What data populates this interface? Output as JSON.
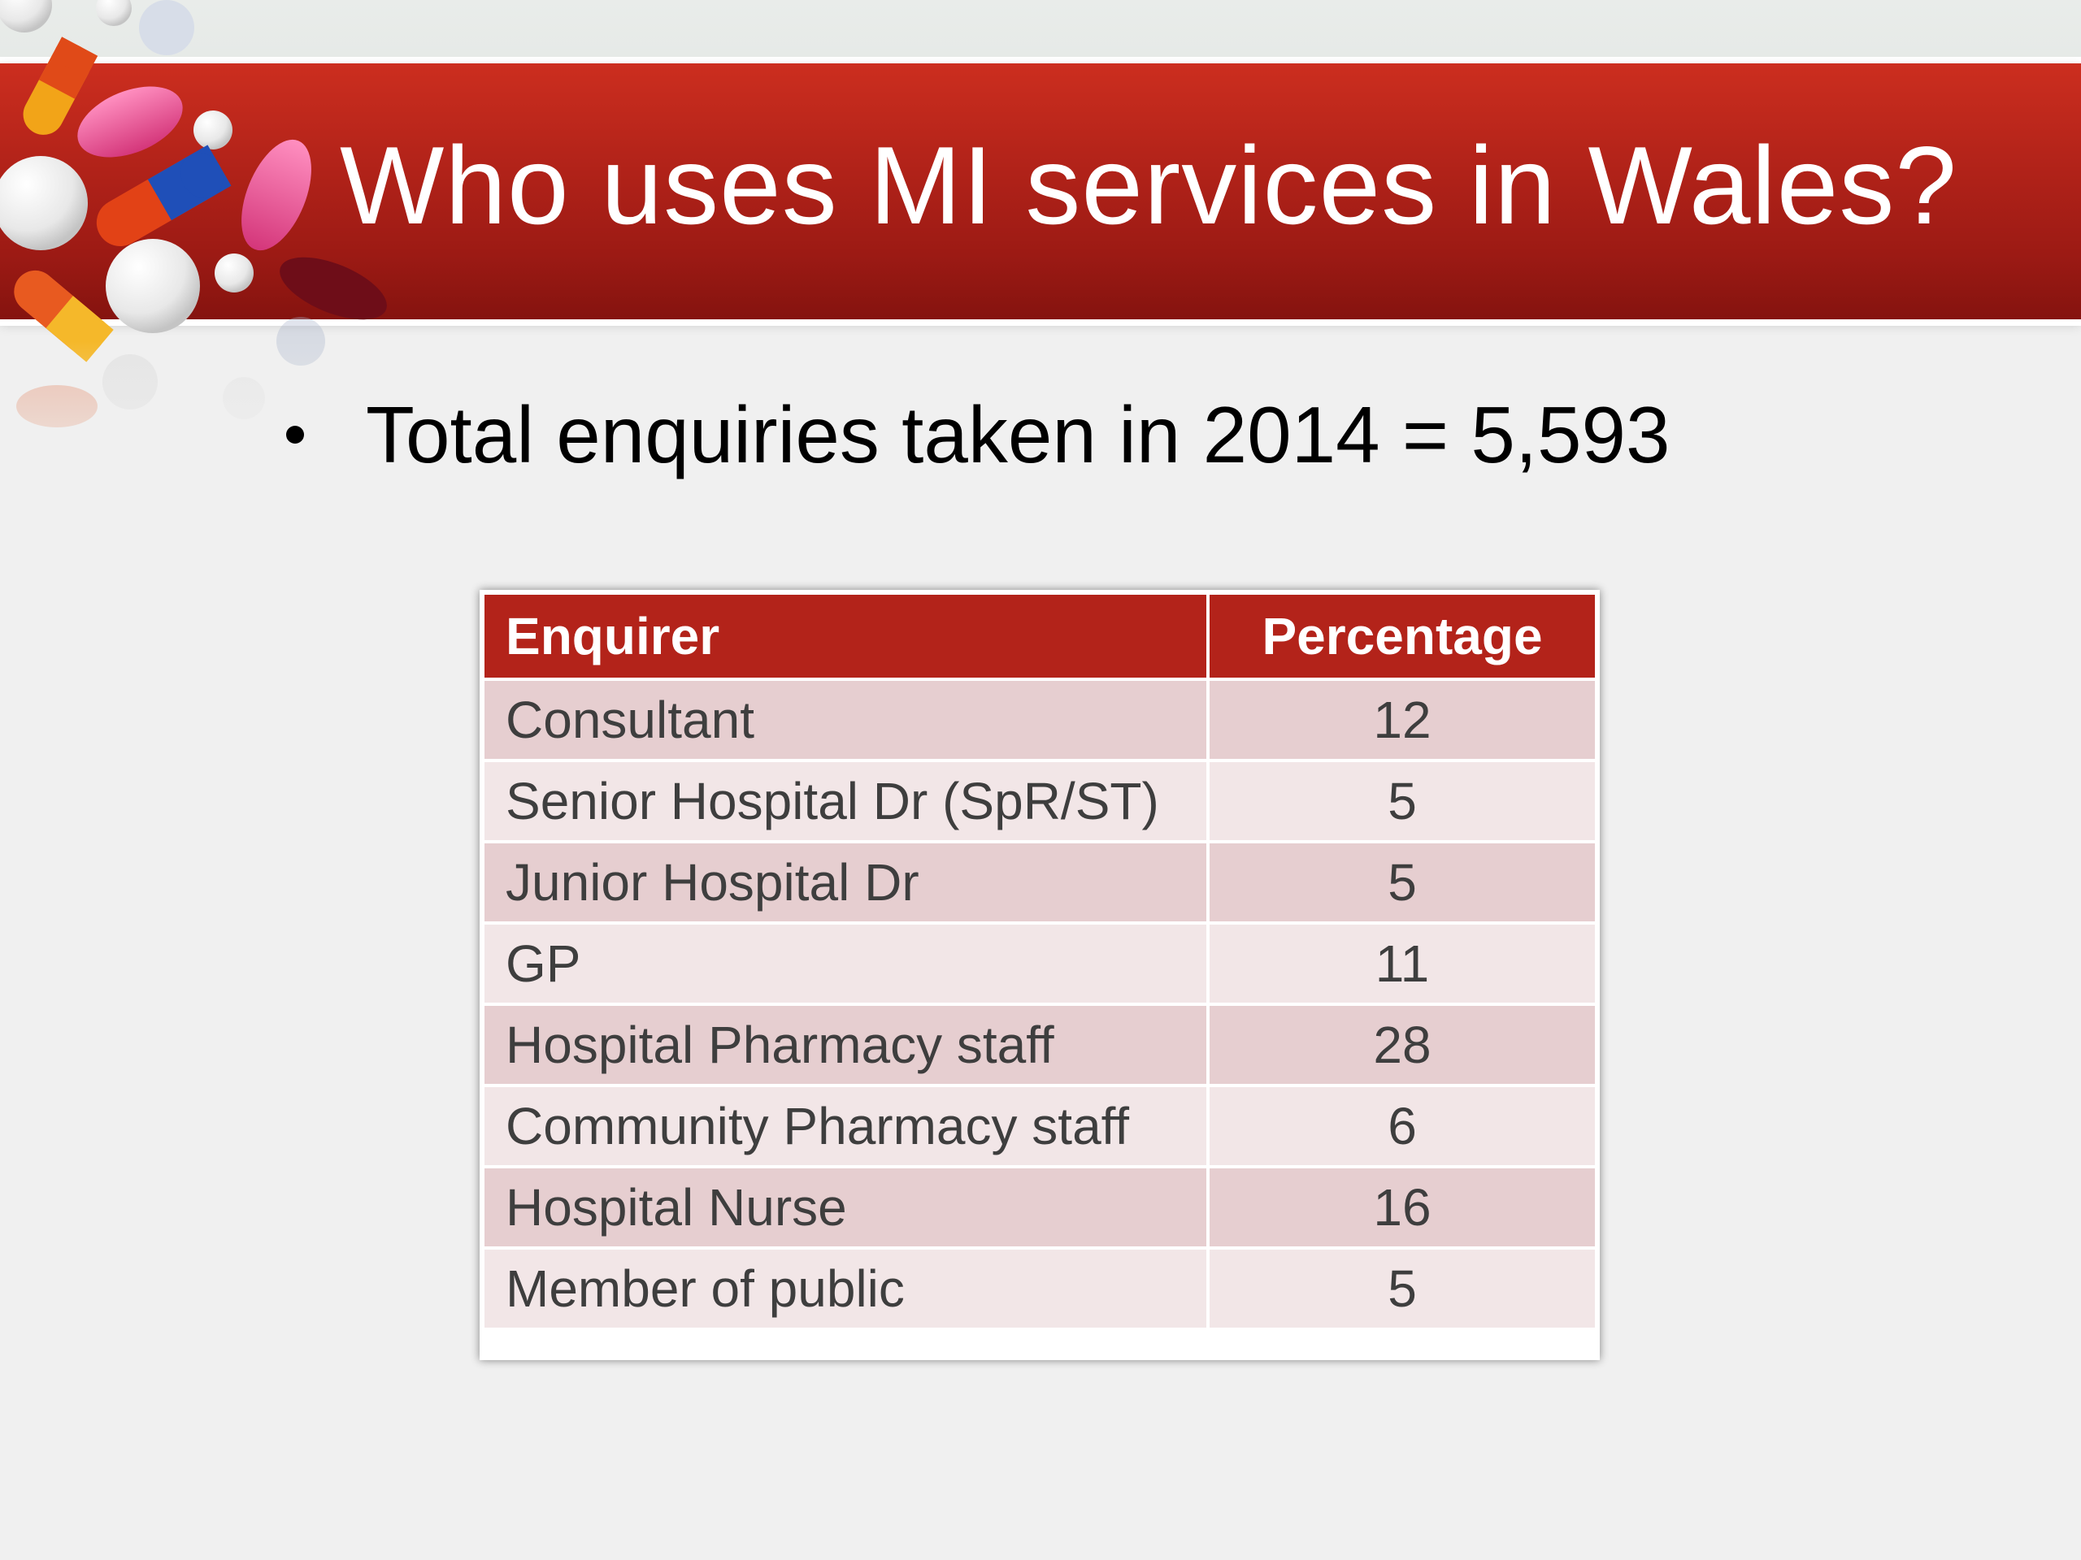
{
  "slide": {
    "title": "Who uses MI services in Wales?",
    "bullet": "Total enquiries taken in 2014 = 5,593",
    "colors": {
      "banner": "#b3231a",
      "header_row": "#b3231a",
      "row_odd": "#e6ced0",
      "row_even": "#f2e6e7"
    },
    "decoration_icon": "pills-and-capsules-icon"
  },
  "table": {
    "headers": [
      "Enquirer",
      "Percentage"
    ],
    "rows": [
      {
        "enquirer": "Consultant",
        "percentage": "12"
      },
      {
        "enquirer": "Senior Hospital Dr (SpR/ST)",
        "percentage": "5"
      },
      {
        "enquirer": "Junior Hospital Dr",
        "percentage": "5"
      },
      {
        "enquirer": "GP",
        "percentage": "11"
      },
      {
        "enquirer": "Hospital Pharmacy staff",
        "percentage": "28"
      },
      {
        "enquirer": "Community Pharmacy staff",
        "percentage": "6"
      },
      {
        "enquirer": "Hospital Nurse",
        "percentage": "16"
      },
      {
        "enquirer": "Member of public",
        "percentage": "5"
      }
    ]
  }
}
